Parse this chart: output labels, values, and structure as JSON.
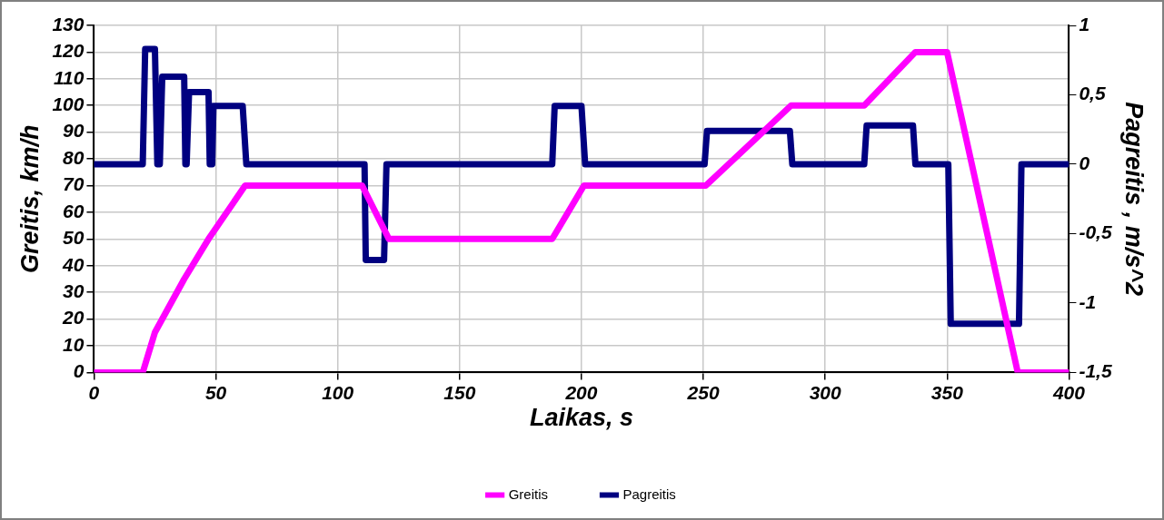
{
  "chart_data": {
    "type": "line",
    "xlabel": "Laikas, s",
    "ylabel": "Greitis, km/h",
    "y2label": "Pagreitis , m/s^2",
    "xlim": [
      0,
      400
    ],
    "xticks": [
      0,
      50,
      100,
      150,
      200,
      250,
      300,
      350,
      400
    ],
    "ylim": [
      0,
      130
    ],
    "yticks": [
      0,
      10,
      20,
      30,
      40,
      50,
      60,
      70,
      80,
      90,
      100,
      110,
      120,
      130
    ],
    "y2lim": [
      -1.5,
      1
    ],
    "y2ticks": [
      {
        "value": -1.5,
        "label": "-1,5"
      },
      {
        "value": -1,
        "label": "-1"
      },
      {
        "value": -0.5,
        "label": "-0,5"
      },
      {
        "value": 0,
        "label": "0"
      },
      {
        "value": 0.5,
        "label": "0,5"
      },
      {
        "value": 1,
        "label": "1"
      }
    ],
    "grid": true,
    "legend": "bottom",
    "marker": "none",
    "line_style": "solid",
    "series": [
      {
        "name": "Greitis",
        "color": "#ff00ff",
        "x": [
          0,
          20,
          25,
          37,
          47,
          62,
          110,
          121,
          188,
          201,
          251,
          286,
          316,
          337,
          350,
          379,
          400
        ],
        "values": [
          0,
          0,
          15,
          35,
          50,
          70,
          70,
          50,
          50,
          70,
          70,
          100,
          100,
          120,
          120,
          0,
          0
        ]
      },
      {
        "name": "Pagreitis",
        "color": "#000080",
        "axis": "y2",
        "x": [
          0,
          20,
          21,
          25,
          26,
          27,
          28,
          37,
          37.5,
          38,
          39,
          47,
          47.5,
          48.5,
          49,
          61,
          62.5,
          111,
          111.5,
          119,
          120,
          188,
          189,
          200,
          201.5,
          250.5,
          251.5,
          285.5,
          286.5,
          316,
          317,
          336,
          337,
          350.5,
          351.5,
          379.5,
          380.5,
          400
        ],
        "values": [
          0,
          0,
          0.83,
          0.83,
          0,
          0,
          0.63,
          0.63,
          0,
          0,
          0.52,
          0.52,
          0,
          0,
          0.42,
          0.42,
          0,
          0,
          -0.69,
          -0.69,
          0,
          0,
          0.42,
          0.42,
          0,
          0,
          0.24,
          0.24,
          0,
          0,
          0.28,
          0.28,
          0,
          0,
          -1.15,
          -1.15,
          0,
          0
        ]
      }
    ]
  }
}
